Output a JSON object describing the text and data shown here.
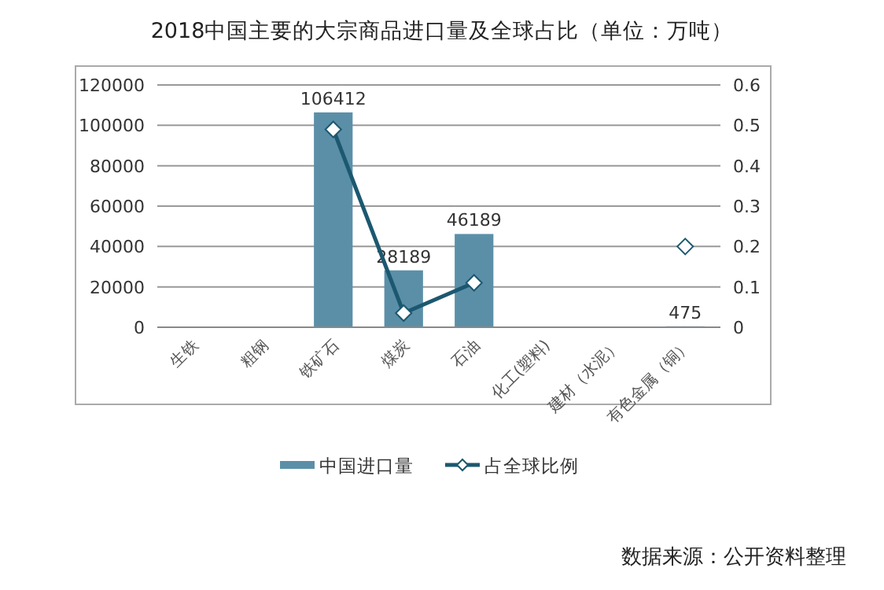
{
  "chart_data": {
    "type": "bar",
    "title": "2018中国主要的大宗商品进口量及全球占比（单位：万吨）",
    "categories": [
      "生铁",
      "粗钢",
      "铁矿石",
      "煤炭",
      "石油",
      "化工(塑料)",
      "建材（水泥）",
      "有色金属（铜）"
    ],
    "series": [
      {
        "name": "中国进口量",
        "color": "#5b8fa8",
        "values": [
          null,
          null,
          106412,
          28189,
          46189,
          null,
          null,
          475
        ],
        "value_labels": [
          null,
          null,
          "106412",
          "28189",
          "46189",
          null,
          null,
          "475"
        ]
      },
      {
        "name": "占全球比例",
        "type": "line",
        "axis": "y2",
        "color": "#1c5870",
        "marker": "diamond",
        "values": [
          null,
          null,
          0.49,
          0.035,
          0.11,
          null,
          null,
          0.2
        ]
      }
    ],
    "ylim": [
      0,
      120000
    ],
    "yticks": [
      0,
      20000,
      40000,
      60000,
      80000,
      100000,
      120000
    ],
    "y2lim": [
      0,
      0.6
    ],
    "y2ticks": [
      0,
      0.1,
      0.2,
      0.3,
      0.4,
      0.5,
      0.6
    ],
    "grid": "y",
    "legend": "bottom",
    "annotations": [
      "数据来源：公开资料整理"
    ]
  }
}
